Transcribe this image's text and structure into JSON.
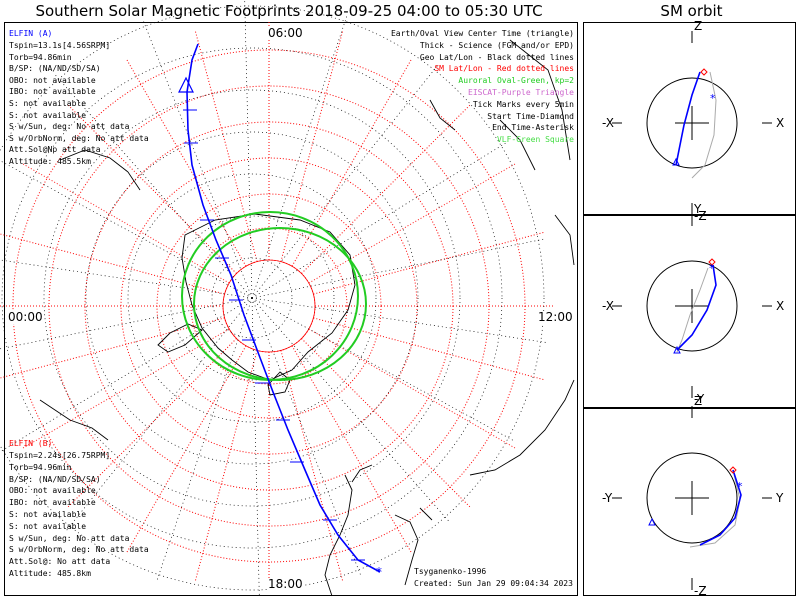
{
  "title": "Southern Solar Magnetic Footprints 2018-09-25 04:00 to 05:30 UTC",
  "orbit_title": "SM orbit",
  "map": {
    "mlt_labels": {
      "top": "06:00",
      "bottom": "18:00",
      "left": "00:00",
      "right": "12:00"
    },
    "legend": [
      {
        "text": "Earth/Oval View Center Time (triangle)",
        "color": "#000000"
      },
      {
        "text": "Thick - Science (FGM and/or EPD)",
        "color": "#000000"
      },
      {
        "text": "Geo Lat/Lon - Black dotted lines",
        "color": "#000000"
      },
      {
        "text": "SM Lat/Lon - Red dotted lines",
        "color": "#ff0000"
      },
      {
        "text": "Auroral Oval-Green, kp=2",
        "color": "#22cc22"
      },
      {
        "text": "EISCAT-Purple Triangle",
        "color": "#cc66cc"
      },
      {
        "text": "Tick Marks every 5min",
        "color": "#000000"
      },
      {
        "text": "Start Time-Diamond",
        "color": "#000000"
      },
      {
        "text": "End Time-Asterisk",
        "color": "#000000"
      },
      {
        "text": "VLF-Green Square",
        "color": "#44dd44"
      }
    ],
    "elfin_a": {
      "title": "ELFIN (A)",
      "color": "#0000ff",
      "lines": [
        "Tspin=13.1s[4.56SRPM]",
        "Torb=94.86min",
        "B/SP: (NA/ND/SD/SA)",
        "OBO: not available",
        "IBO: not available",
        "S: not available",
        "S: not available",
        "S w/Sun, deg: No att data",
        "S w/OrbNorm, deg: No att data",
        "Att.Sol@Np att data",
        "Altitude: 485.5km"
      ]
    },
    "elfin_b": {
      "title": "ELFIN (B)",
      "color": "#ff0000",
      "lines": [
        "Tspin=2.24s[26.75RPM]",
        "Torb=94.96min",
        "B/SP: (NA/ND/SD/SA)",
        "OBO: not available",
        "IBO: not available",
        "S: not available",
        "S: not available",
        "S w/Sun, deg: No att data",
        "S w/OrbNorm, deg: No att data",
        "Att.Sol@: No att data",
        "Altitude: 485.8km"
      ]
    },
    "credit": "Tsyganenko-1996",
    "created": "Created: Sun Jan 29 09:04:34 2023"
  },
  "orbit_panels": [
    {
      "top": "Z",
      "bottom": "-Z",
      "left": "-X",
      "right": "X"
    },
    {
      "top": "Y",
      "bottom": "-Y",
      "left": "-X",
      "right": "X"
    },
    {
      "top": "Z",
      "bottom": "-Z",
      "left": "-Y",
      "right": "Y"
    }
  ],
  "colors": {
    "trace": "#0000ff",
    "sm_grid": "#ff0000",
    "oval": "#22cc22",
    "geo_grid": "#000000",
    "eiscat": "#cc66cc"
  }
}
